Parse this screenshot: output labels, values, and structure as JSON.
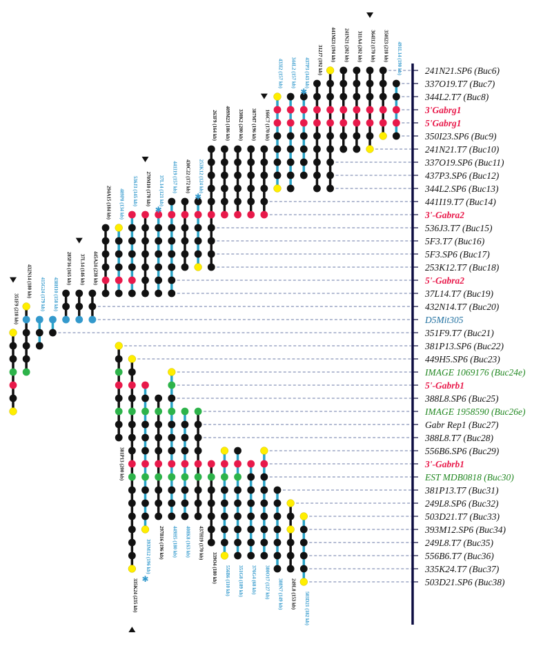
{
  "colors": {
    "black": "#111111",
    "blue": "#3399cc",
    "red": "#e8194a",
    "yellow": "#ffee00",
    "green": "#2db34a",
    "teal": "#2aa4c8",
    "navy": "#0b0b40",
    "marker_black": "#111111",
    "marker_blue": "#333399",
    "marker_red": "#e8194a",
    "marker_green": "#228822",
    "marker_teal": "#1f6f9f",
    "clone_black": "#111111",
    "clone_blue": "#3399cc"
  },
  "markers": [
    {
      "label": "241N21.SP6 (Buc6)",
      "color": "black"
    },
    {
      "label": "337O19.T7 (Buc7)",
      "color": "black"
    },
    {
      "label": "344L2.T7 (Buc8)",
      "color": "black"
    },
    {
      "label": "3'Gabrg1",
      "color": "red"
    },
    {
      "label": "5'Gabrg1",
      "color": "red"
    },
    {
      "label": "350I23.SP6 (Buc9)",
      "color": "black"
    },
    {
      "label": "241N21.T7 (Buc10)",
      "color": "black"
    },
    {
      "label": "337O19.SP6 (Buc11)",
      "color": "black"
    },
    {
      "label": "437P3.SP6 (Buc12)",
      "color": "black"
    },
    {
      "label": "344L2.SP6 (Buc13)",
      "color": "black"
    },
    {
      "label": "441I19.T7 (Buc14)",
      "color": "black"
    },
    {
      "label": "3'-Gabra2",
      "color": "red"
    },
    {
      "label": "536J3.T7 (Buc15)",
      "color": "black"
    },
    {
      "label": "5F3.T7 (Buc16)",
      "color": "black"
    },
    {
      "label": "5F3.SP6 (Buc17)",
      "color": "black"
    },
    {
      "label": "253K12.T7 (Buc18)",
      "color": "black"
    },
    {
      "label": "5'-Gabra2",
      "color": "red"
    },
    {
      "label": "37L14.T7 (Buc19)",
      "color": "black"
    },
    {
      "label": "432N14.T7 (Buc20)",
      "color": "black"
    },
    {
      "label": "D5Mit305",
      "color": "teal"
    },
    {
      "label": "351F9.T7 (Buc21)",
      "color": "black"
    },
    {
      "label": "381P13.SP6 (Buc22)",
      "color": "black"
    },
    {
      "label": "449H5.SP6 (Buc23)",
      "color": "black"
    },
    {
      "label": "IMAGE 1069176 (Buc24e)",
      "color": "green"
    },
    {
      "label": "5'-Gabrb1",
      "color": "red"
    },
    {
      "label": "388L8.SP6 (Buc25)",
      "color": "black"
    },
    {
      "label": "IMAGE 1958590  (Buc26e)",
      "color": "green"
    },
    {
      "label": "Gabr Rep1 (Buc27)",
      "color": "black"
    },
    {
      "label": "388L8.T7 (Buc28)",
      "color": "black"
    },
    {
      "label": "556B6.SP6 (Buc29)",
      "color": "black"
    },
    {
      "label": "3'-Gabrb1",
      "color": "red"
    },
    {
      "label": "EST MDB0818 (Buc30)",
      "color": "green"
    },
    {
      "label": "381P13.T7 (Buc31)",
      "color": "black"
    },
    {
      "label": "249L8.SP6 (Buc32)",
      "color": "black"
    },
    {
      "label": "503D21.T7 (Buc33)",
      "color": "black"
    },
    {
      "label": "393M12.SP6 (Buc34)",
      "color": "black"
    },
    {
      "label": "249L8.T7 (Buc35)",
      "color": "black"
    },
    {
      "label": "556B6.T7 (Buc36)",
      "color": "black"
    },
    {
      "label": "335K24.T7 (Buc37)",
      "color": "black"
    },
    {
      "label": "503D21.SP6 (Buc38)",
      "color": "black"
    }
  ],
  "clones_top": [
    {
      "label": "351F9 (218 kb)",
      "color": "black",
      "col": 0,
      "arrow": true,
      "star": false,
      "start": 20,
      "end": 26,
      "marks": {
        "20": "yellow",
        "23": "green",
        "24": "red",
        "26": "yellow"
      }
    },
    {
      "label": "432N14 (180 kb)",
      "color": "black",
      "col": 1,
      "arrow": false,
      "star": false,
      "start": 18,
      "end": 23,
      "marks": {
        "18": "yellow",
        "19": "blue",
        "23": "green"
      }
    },
    {
      "label": "415G24 (179 kb)",
      "color": "blue",
      "col": 2,
      "arrow": false,
      "star": false,
      "start": 19,
      "end": 21,
      "marks": {
        "19": "blue"
      }
    },
    {
      "label": "438H10 (158 kb)",
      "color": "blue",
      "col": 3,
      "arrow": false,
      "star": false,
      "start": 19,
      "end": 20,
      "marks": {
        "19": "blue"
      }
    },
    {
      "label": "285F16 (165 kb)",
      "color": "black",
      "col": 4,
      "arrow": false,
      "star": false,
      "start": 17,
      "end": 19,
      "marks": {
        "19": "blue"
      }
    },
    {
      "label": "37L14 (146 kb)",
      "color": "black",
      "col": 5,
      "arrow": true,
      "star": false,
      "start": 17,
      "end": 19,
      "marks": {
        "19": "blue"
      }
    },
    {
      "label": "445A24 (238 kb)",
      "color": "black",
      "col": 6,
      "arrow": false,
      "star": false,
      "start": 17,
      "end": 19,
      "marks": {
        "19": "blue"
      }
    },
    {
      "label": "294A15 (184 kb)",
      "color": "black",
      "col": 7,
      "arrow": false,
      "star": false,
      "start": 12,
      "end": 17,
      "marks": {
        "16": "red"
      }
    },
    {
      "label": "489P8 (134 kb)",
      "color": "blue",
      "col": 8,
      "arrow": false,
      "star": false,
      "start": 12,
      "end": 17,
      "marks": {
        "12": "yellow",
        "16": "red"
      }
    },
    {
      "label": "536J3 (145 kb)",
      "color": "blue",
      "col": 9,
      "arrow": false,
      "star": false,
      "start": 11,
      "end": 17,
      "marks": {
        "11": "red",
        "16": "red"
      }
    },
    {
      "label": "270M10 (170 kb)",
      "color": "black",
      "col": 10,
      "arrow": true,
      "star": false,
      "start": 11,
      "end": 17,
      "marks": {
        "11": "red"
      }
    },
    {
      "label": "37L14 (121 kb)",
      "color": "blue",
      "col": 11,
      "arrow": false,
      "star": true,
      "start": 11,
      "end": 17,
      "marks": {
        "11": "red"
      }
    },
    {
      "label": "441I19 (157 kb)",
      "color": "blue",
      "col": 12,
      "arrow": false,
      "star": false,
      "start": 10,
      "end": 17,
      "marks": {
        "11": "red"
      }
    },
    {
      "label": "430C22 (172 kb)",
      "color": "black",
      "col": 13,
      "arrow": false,
      "star": false,
      "start": 10,
      "end": 15,
      "marks": {
        "11": "red"
      }
    },
    {
      "label": "253K12 (124 kb)",
      "color": "blue",
      "col": 14,
      "arrow": false,
      "star": true,
      "start": 10,
      "end": 15,
      "marks": {
        "11": "red",
        "15": "yellow"
      }
    },
    {
      "label": "263F9 (164 kb)",
      "color": "black",
      "col": 15,
      "arrow": false,
      "star": false,
      "start": 6,
      "end": 15,
      "marks": {
        "11": "red"
      }
    },
    {
      "label": "409M23 (186 kb)",
      "color": "black",
      "col": 16,
      "arrow": false,
      "star": false,
      "start": 6,
      "end": 11,
      "marks": {
        "11": "red"
      }
    },
    {
      "label": "330K2 (200 kb)",
      "color": "black",
      "col": 17,
      "arrow": false,
      "star": false,
      "start": 6,
      "end": 11,
      "marks": {
        "11": "red"
      }
    },
    {
      "label": "387M7 (196 kb)",
      "color": "black",
      "col": 18,
      "arrow": false,
      "star": false,
      "start": 6,
      "end": 11,
      "marks": {
        "11": "red"
      }
    },
    {
      "label": "166C7 (170 kb)",
      "color": "black",
      "col": 19,
      "arrow": true,
      "star": false,
      "start": 6,
      "end": 11,
      "marks": {
        "11": "red"
      }
    },
    {
      "label": "433I2 (157 kb)",
      "color": "blue",
      "col": 20,
      "arrow": false,
      "star": false,
      "start": 2,
      "end": 9,
      "marks": {
        "2": "yellow",
        "3": "red",
        "4": "red",
        "9": "yellow"
      }
    },
    {
      "label": "344L2 (157 kb)",
      "color": "blue",
      "col": 21,
      "arrow": false,
      "star": false,
      "start": 2,
      "end": 9,
      "marks": {
        "3": "red",
        "4": "red"
      }
    },
    {
      "label": "437P3 (143 kb)",
      "color": "blue",
      "col": 22,
      "arrow": false,
      "star": true,
      "start": 2,
      "end": 8,
      "marks": {
        "3": "red",
        "4": "red"
      }
    },
    {
      "label": "312J7 (192 kb)",
      "color": "black",
      "col": 23,
      "arrow": false,
      "star": false,
      "start": 1,
      "end": 9,
      "marks": {
        "3": "red",
        "4": "red"
      }
    },
    {
      "label": "441M23 (194 kb)",
      "color": "black",
      "col": 24,
      "arrow": false,
      "star": false,
      "start": 0,
      "end": 9,
      "marks": {
        "0": "yellow",
        "3": "red",
        "4": "red"
      }
    },
    {
      "label": "241N21 (202 kb)",
      "color": "black",
      "col": 25,
      "arrow": false,
      "star": false,
      "start": 0,
      "end": 6,
      "marks": {
        "3": "red",
        "4": "red"
      }
    },
    {
      "label": "311A4 (202 kb)",
      "color": "black",
      "col": 26,
      "arrow": false,
      "star": false,
      "start": 0,
      "end": 6,
      "marks": {
        "3": "red",
        "4": "red"
      }
    },
    {
      "label": "364I12 (170 kb)",
      "color": "black",
      "col": 27,
      "arrow": true,
      "star": false,
      "start": 0,
      "end": 6,
      "marks": {
        "3": "red",
        "4": "red",
        "6": "yellow"
      }
    },
    {
      "label": "350I23 (218 kb)",
      "color": "black",
      "col": 28,
      "arrow": false,
      "star": false,
      "start": 0,
      "end": 5,
      "marks": {
        "3": "red",
        "4": "red",
        "5": "yellow"
      }
    },
    {
      "label": "491L14 (190 kb)",
      "color": "blue",
      "col": 29,
      "arrow": false,
      "star": false,
      "start": 1,
      "end": 5,
      "marks": {
        "3": "red",
        "4": "red"
      }
    }
  ],
  "clones_bottom": [
    {
      "label": "381P13 (200 kb)",
      "color": "black",
      "col": 8,
      "arrow": false,
      "star": false,
      "start": 21,
      "end": 28,
      "marks": {
        "21": "yellow",
        "23": "green",
        "24": "red",
        "26": "green",
        "30": "red",
        "31": "green"
      }
    },
    {
      "label": "335K24 (235 kb)",
      "color": "black",
      "col": 9,
      "arrow": true,
      "star": false,
      "start": 22,
      "end": 38,
      "marks": {
        "22": "yellow",
        "24": "red",
        "26": "green",
        "30": "red",
        "31": "green",
        "38": "yellow"
      }
    },
    {
      "label": "393M12 (196 kb)",
      "color": "blue",
      "col": 10,
      "arrow": false,
      "star": true,
      "start": 24,
      "end": 35,
      "marks": {
        "24": "red",
        "26": "green",
        "30": "red",
        "31": "green",
        "35": "yellow"
      }
    },
    {
      "label": "297B16 (196 kb)",
      "color": "black",
      "col": 11,
      "arrow": false,
      "star": false,
      "start": 25,
      "end": 34,
      "marks": {
        "26": "green",
        "30": "red",
        "31": "green"
      }
    },
    {
      "label": "449H5 (180 kb)",
      "color": "blue",
      "col": 12,
      "arrow": false,
      "star": false,
      "start": 23,
      "end": 34,
      "marks": {
        "23": "yellow",
        "24": "green",
        "26": "green",
        "30": "red",
        "31": "green"
      }
    },
    {
      "label": "408K8 (163 kb)",
      "color": "blue",
      "col": 13,
      "arrow": false,
      "star": false,
      "start": 26,
      "end": 34,
      "marks": {
        "26": "green",
        "30": "red",
        "31": "green"
      }
    },
    {
      "label": "437H19 (170 kb)",
      "color": "black",
      "col": 14,
      "arrow": false,
      "star": false,
      "start": 26,
      "end": 34,
      "marks": {
        "26": "green",
        "30": "red",
        "31": "green"
      }
    },
    {
      "label": "339O4 (180 kb)",
      "color": "black",
      "col": 15,
      "arrow": false,
      "star": false,
      "start": 30,
      "end": 36,
      "marks": {
        "30": "red",
        "31": "green"
      }
    },
    {
      "label": "556B6 (110 kb)",
      "color": "blue",
      "col": 16,
      "arrow": false,
      "star": false,
      "start": 29,
      "end": 37,
      "marks": {
        "29": "yellow",
        "30": "red",
        "31": "green",
        "37": "yellow"
      }
    },
    {
      "label": "351G8 (189 kb)",
      "color": "blue",
      "col": 17,
      "arrow": false,
      "star": false,
      "start": 29,
      "end": 37,
      "marks": {
        "30": "red",
        "31": "green"
      }
    },
    {
      "label": "376G4 (68 kb)",
      "color": "blue",
      "col": 18,
      "arrow": false,
      "star": false,
      "start": 30,
      "end": 37,
      "marks": {
        "30": "red"
      }
    },
    {
      "label": "380O17 (127 kb)",
      "color": "blue",
      "col": 19,
      "arrow": false,
      "star": false,
      "start": 29,
      "end": 37,
      "marks": {
        "29": "yellow",
        "30": "red"
      }
    },
    {
      "label": "388N7 (149 kb)",
      "color": "blue",
      "col": 20,
      "arrow": false,
      "star": false,
      "start": 32,
      "end": 38,
      "marks": {}
    },
    {
      "label": "249L8 (153 kb)",
      "color": "black",
      "col": 21,
      "arrow": false,
      "star": false,
      "start": 33,
      "end": 38,
      "marks": {
        "33": "yellow",
        "35": "yellow"
      }
    },
    {
      "label": "503D21 (182 kb)",
      "color": "blue",
      "col": 22,
      "arrow": false,
      "star": false,
      "start": 34,
      "end": 39,
      "marks": {
        "34": "yellow",
        "39": "yellow"
      }
    }
  ]
}
